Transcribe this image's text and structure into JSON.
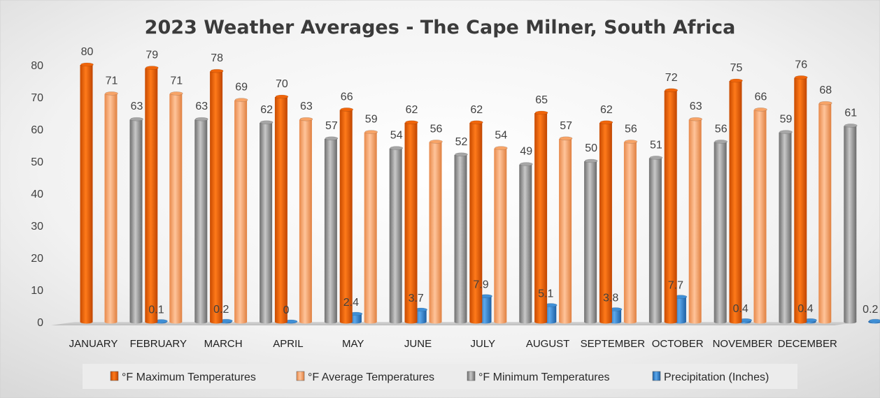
{
  "chart_data": {
    "type": "bar",
    "title": "2023 Weather Averages - The Cape Milner, South Africa",
    "xlabel": "",
    "ylabel": "",
    "ylim": [
      0,
      80
    ],
    "yticks": [
      "0",
      "10",
      "20",
      "30",
      "40",
      "50",
      "60",
      "70",
      "80"
    ],
    "grid": false,
    "legend_position": "bottom",
    "categories": [
      "JANUARY",
      "FEBRUARY",
      "MARCH",
      "APRIL",
      "MAY",
      "JUNE",
      "JULY",
      "AUGUST",
      "SEPTEMBER",
      "OCTOBER",
      "NOVEMBER",
      "DECEMBER"
    ],
    "series": [
      {
        "name": "°F Maximum Temperatures",
        "color": "#f0650a",
        "values": [
          80,
          79,
          78,
          70,
          66,
          62,
          62,
          65,
          62,
          72,
          75,
          76
        ],
        "labels": [
          "80",
          "79",
          "78",
          "70",
          "66",
          "62",
          "62",
          "65",
          "62",
          "72",
          "75",
          "76"
        ]
      },
      {
        "name": "°F Average Temperatures",
        "color": "#f7a468",
        "values": [
          71,
          71,
          69,
          63,
          59,
          56,
          54,
          57,
          56,
          63,
          66,
          68
        ],
        "labels": [
          "71",
          "71",
          "69",
          "63",
          "59",
          "56",
          "54",
          "57",
          "56",
          "63",
          "66",
          "68"
        ]
      },
      {
        "name": "°F Minimum Temperatures",
        "color": "#a6a6a6",
        "values": [
          63,
          63,
          62,
          57,
          54,
          52,
          49,
          50,
          51,
          56,
          59,
          61
        ],
        "labels": [
          "63",
          "63",
          "62",
          "57",
          "54",
          "52",
          "49",
          "50",
          "51",
          "56",
          "59",
          "61"
        ]
      },
      {
        "name": "Precipitation (Inches)",
        "color": "#3f8fd6",
        "values": [
          0.1,
          0.2,
          0,
          2.4,
          3.7,
          7.9,
          5.1,
          3.8,
          7.7,
          0.4,
          0.4,
          0.2
        ],
        "labels": [
          "0.1",
          "0.2",
          "0",
          "2.4",
          "3.7",
          "7.9",
          "5.1",
          "3.8",
          "7.7",
          "0.4",
          "0.4",
          "0.2"
        ]
      }
    ]
  }
}
